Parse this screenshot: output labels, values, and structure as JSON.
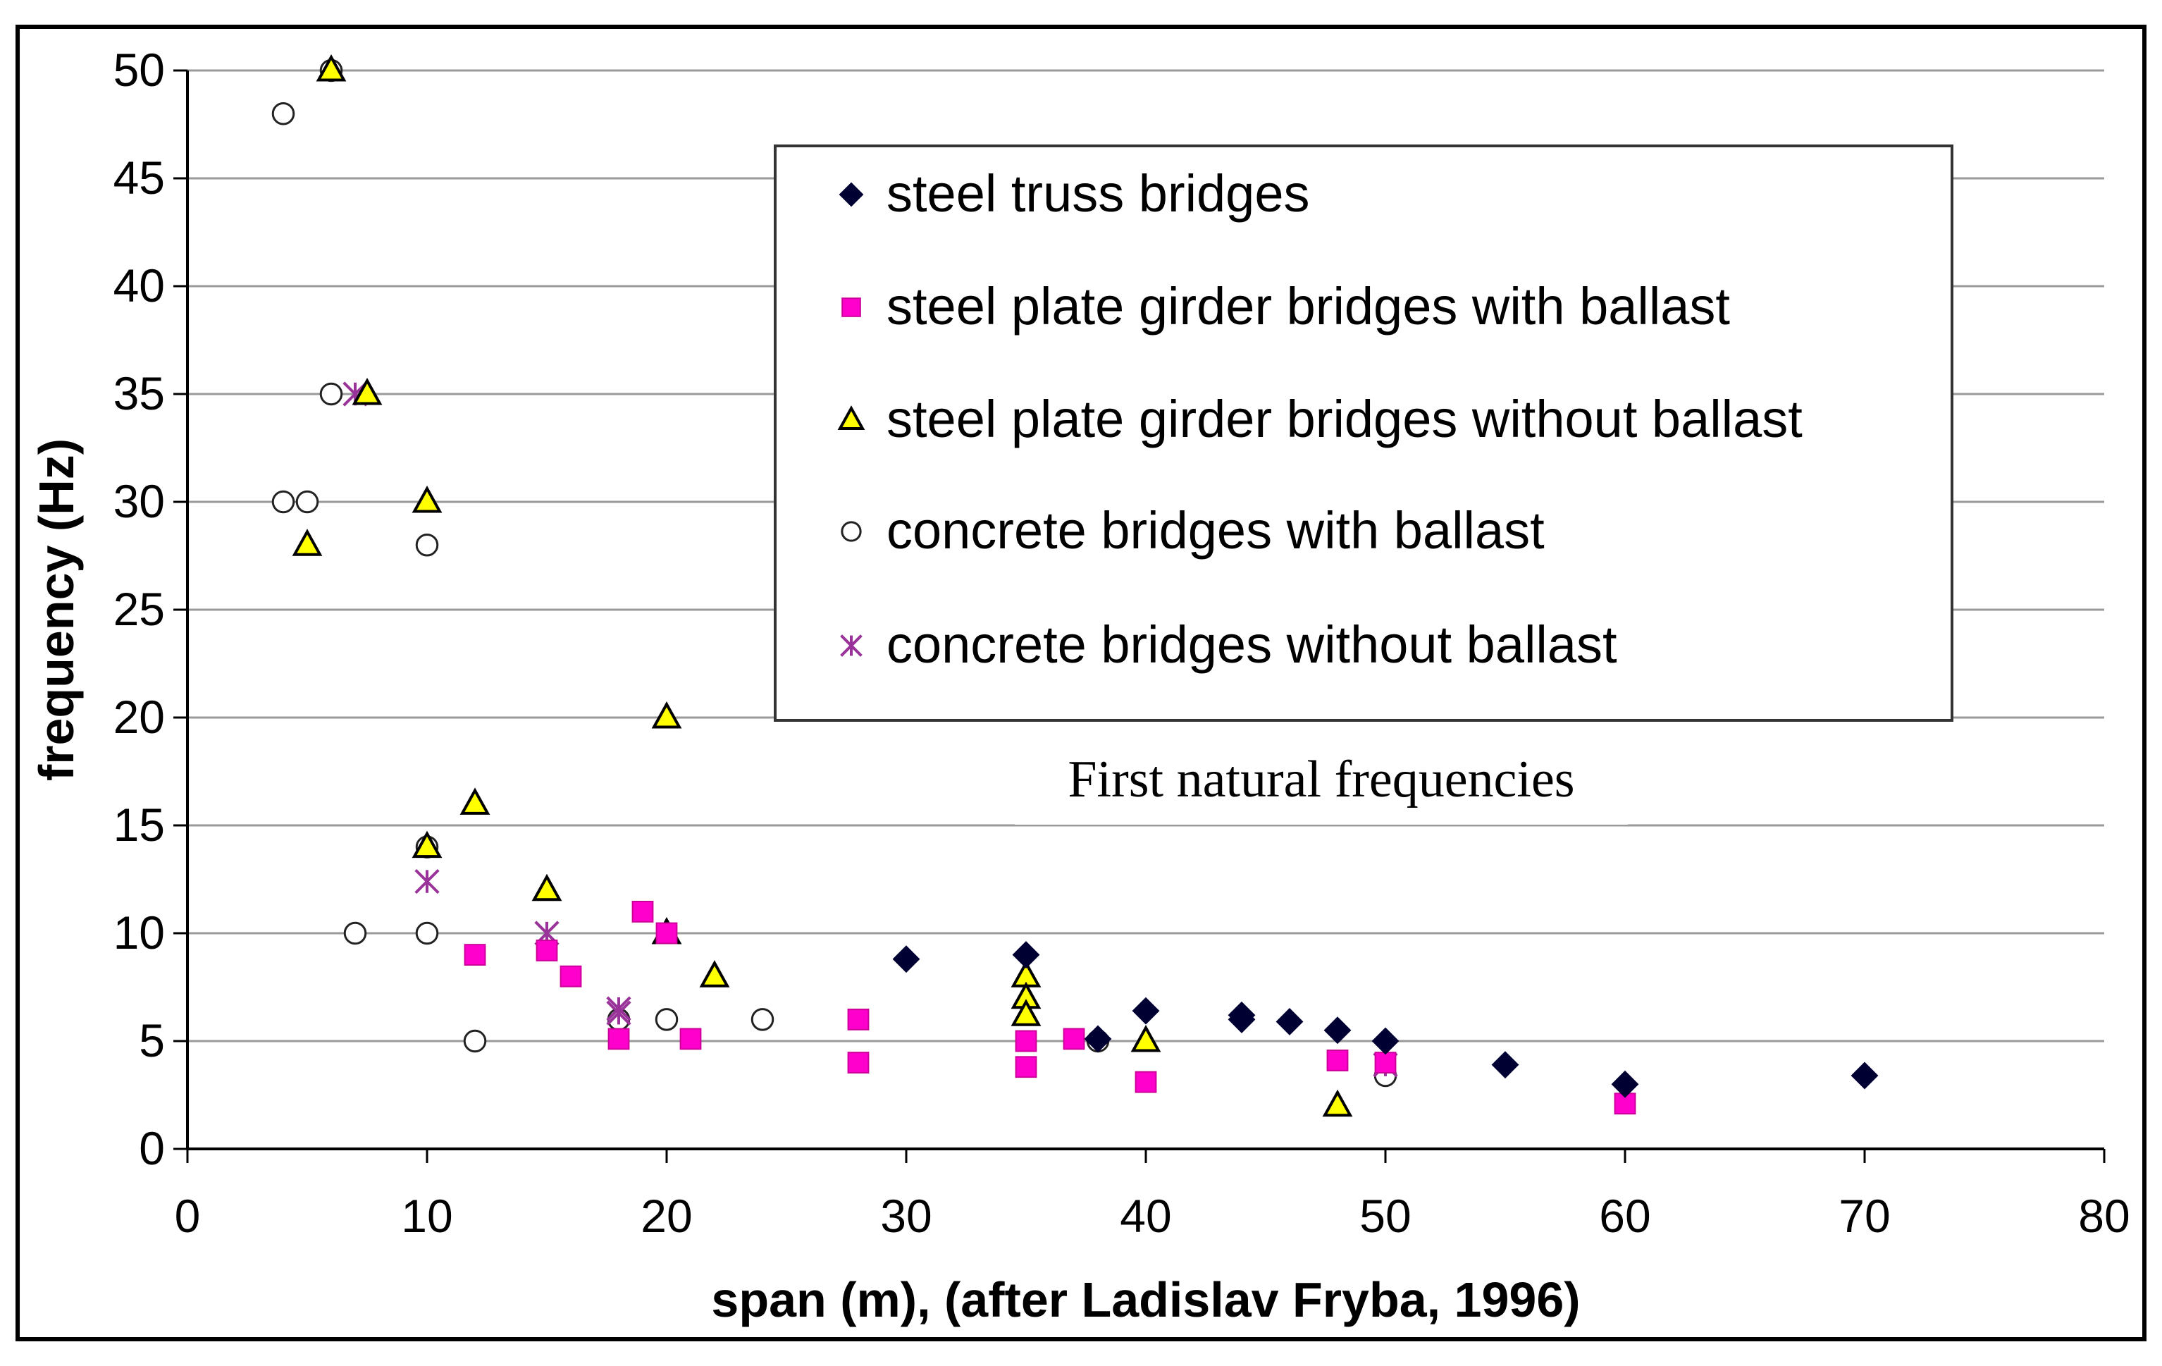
{
  "chart_data": {
    "type": "scatter",
    "title": "",
    "annotation": "First natural frequencies",
    "xlabel": "span (m), (after Ladislav Fryba, 1996)",
    "ylabel": "frequency (Hz)",
    "xlim": [
      0,
      80
    ],
    "ylim": [
      0,
      50
    ],
    "xticks": [
      0,
      10,
      20,
      30,
      40,
      50,
      60,
      70,
      80
    ],
    "yticks": [
      0,
      5,
      10,
      15,
      20,
      25,
      30,
      35,
      40,
      45,
      50
    ],
    "grid": "horizontal",
    "legend_position": "top-right",
    "series": [
      {
        "name": "steel truss bridges",
        "marker": "diamond",
        "color": "#000033",
        "x": [
          30,
          35,
          38,
          40,
          44,
          44,
          46,
          48,
          50,
          55,
          60,
          70
        ],
        "y": [
          8.8,
          9,
          5.1,
          6.4,
          6.2,
          6.0,
          5.9,
          5.5,
          5.0,
          3.9,
          3.0,
          3.4
        ]
      },
      {
        "name": "steel plate girder bridges with ballast",
        "marker": "square",
        "color": "#ff00cc",
        "x": [
          12,
          15,
          16,
          18,
          19,
          20,
          21,
          28,
          28,
          35,
          35,
          37,
          40,
          48,
          50,
          60
        ],
        "y": [
          9,
          9.2,
          8,
          5.1,
          11,
          10,
          5.1,
          6,
          4,
          5,
          3.8,
          5.1,
          3.1,
          4.1,
          4,
          2.1
        ]
      },
      {
        "name": "steel plate girder bridges without ballast",
        "marker": "triangle",
        "color": "#ffff00",
        "x": [
          5,
          6,
          7.5,
          10,
          10,
          12,
          15,
          20,
          20,
          22,
          35,
          35,
          35,
          40,
          48
        ],
        "y": [
          28,
          50,
          35,
          30,
          14,
          16,
          12,
          20,
          10,
          8,
          8,
          7,
          6.2,
          5,
          2
        ]
      },
      {
        "name": "concrete bridges with ballast",
        "marker": "circle",
        "color": "#ffffff",
        "x": [
          4,
          6,
          6,
          4,
          5,
          10,
          10,
          7,
          10,
          12,
          18,
          20,
          24,
          38,
          50
        ],
        "y": [
          48,
          50,
          35,
          30,
          30,
          28,
          14,
          10,
          10,
          5,
          6,
          6,
          6,
          5,
          3.4
        ]
      },
      {
        "name": "concrete bridges without ballast",
        "marker": "asterisk",
        "color": "#993399",
        "x": [
          7,
          10,
          15,
          18,
          18,
          50
        ],
        "y": [
          35,
          12.4,
          10,
          6.5,
          6.3,
          3.9
        ]
      }
    ]
  }
}
